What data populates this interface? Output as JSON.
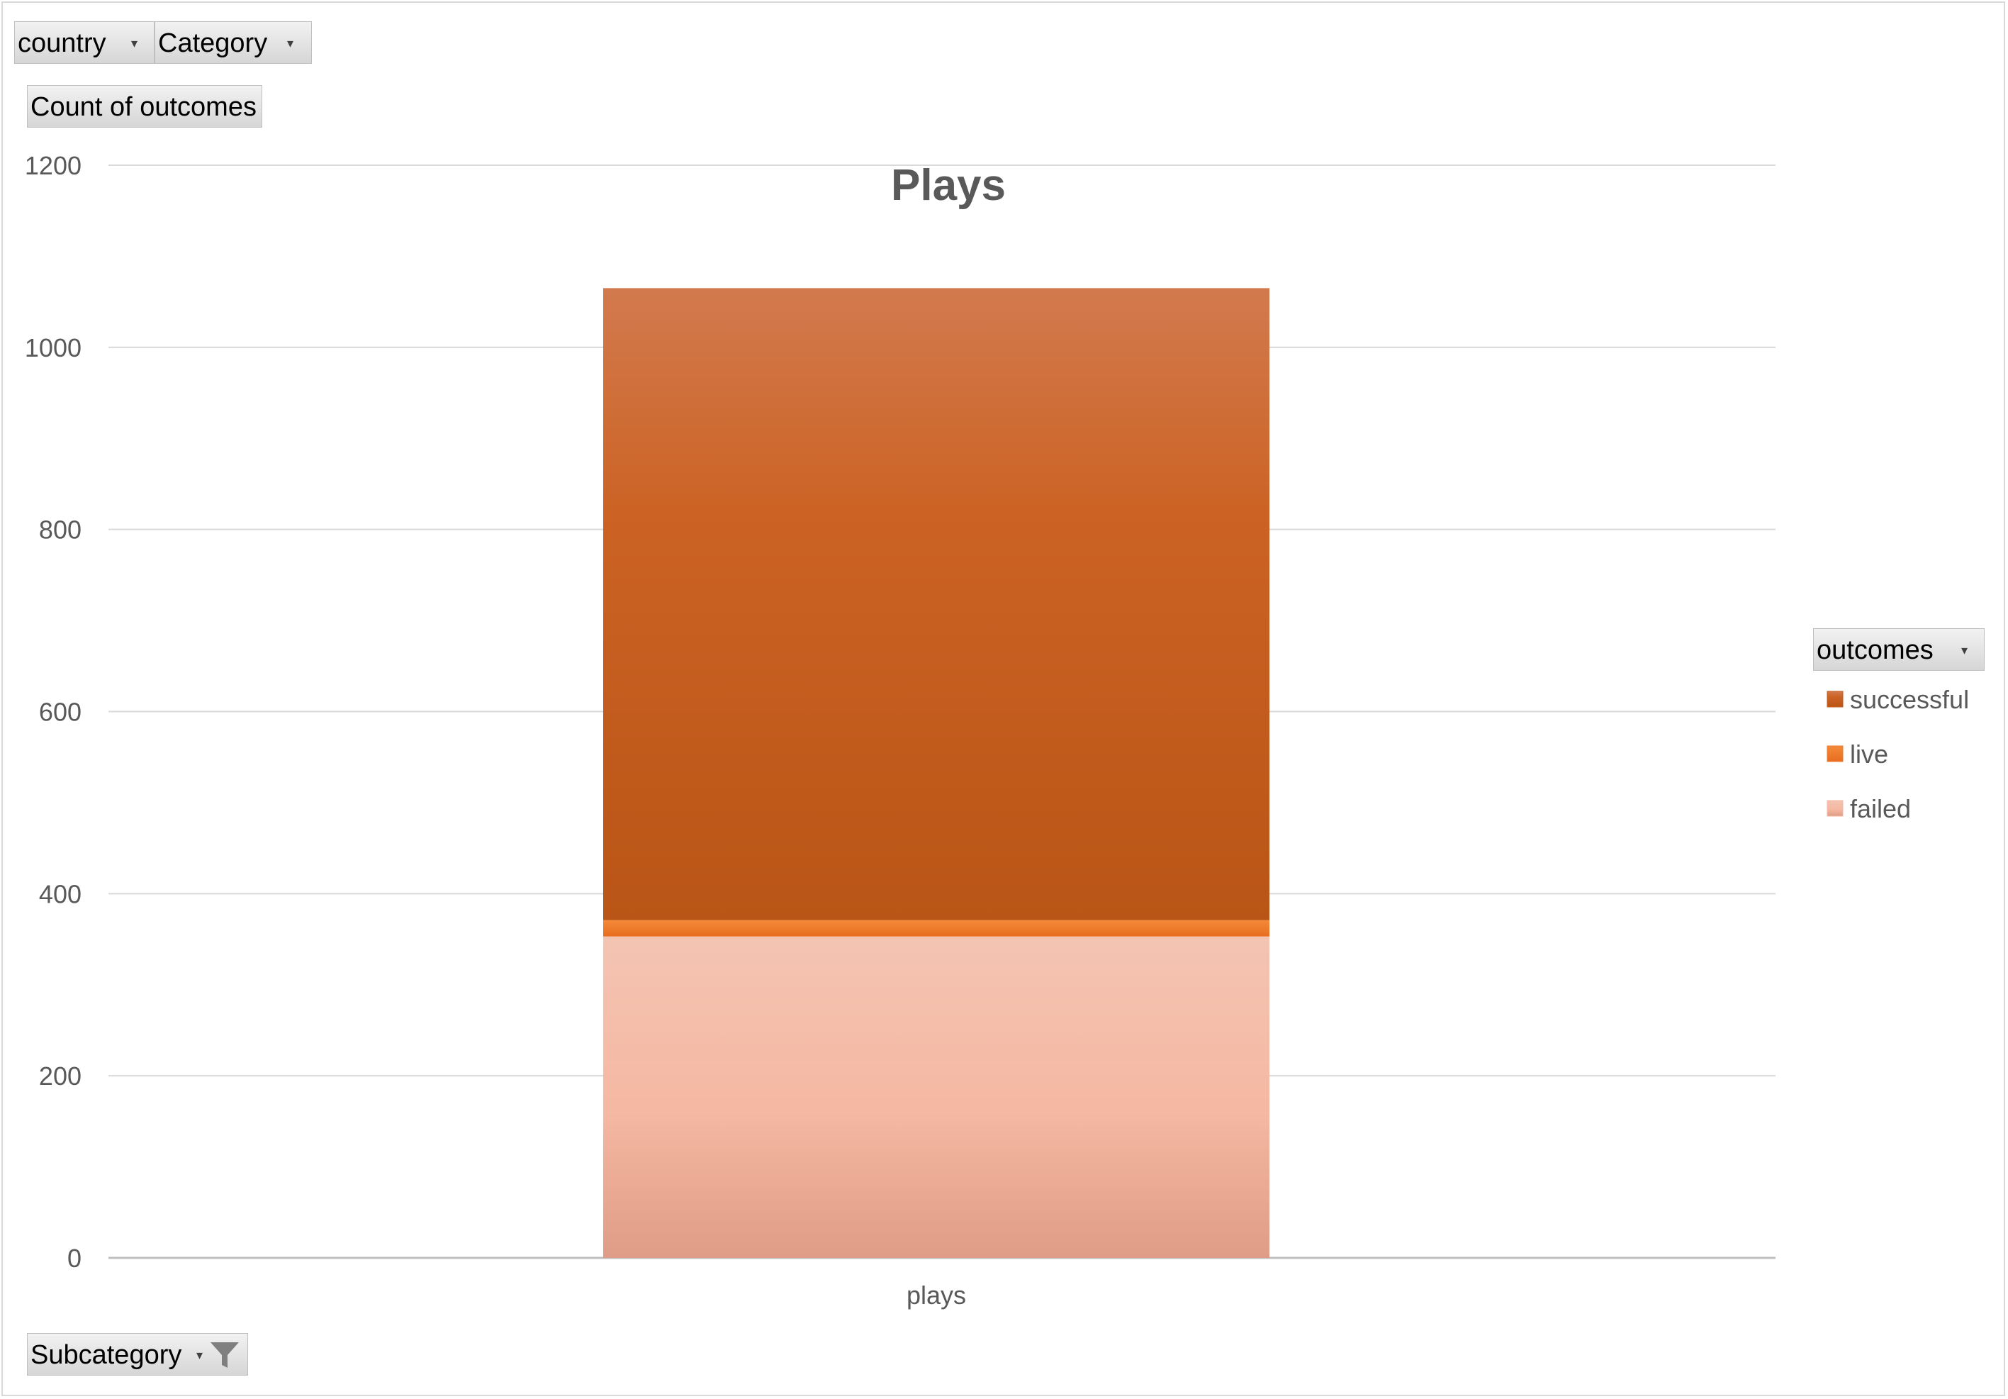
{
  "filters": {
    "country_label": "country",
    "category_label": "Category",
    "values_label": "Count of outcomes",
    "subcategory_label": "Subcategory"
  },
  "legend": {
    "title": "outcomes"
  },
  "chart_data": {
    "type": "bar",
    "stacked": true,
    "title": "Plays",
    "categories": [
      "plays"
    ],
    "series": [
      {
        "name": "failed",
        "values": [
          353
        ],
        "color": "#f4b8a2"
      },
      {
        "name": "live",
        "values": [
          18
        ],
        "color": "#f07b2c"
      },
      {
        "name": "successful",
        "values": [
          694
        ],
        "color": "#c55a1a"
      }
    ],
    "yticks": [
      "0",
      "200",
      "400",
      "600",
      "800",
      "1000",
      "1200"
    ],
    "ylim": [
      0,
      1200
    ],
    "grid": true,
    "legend_position": "right",
    "legend_order": [
      "successful",
      "live",
      "failed"
    ]
  }
}
